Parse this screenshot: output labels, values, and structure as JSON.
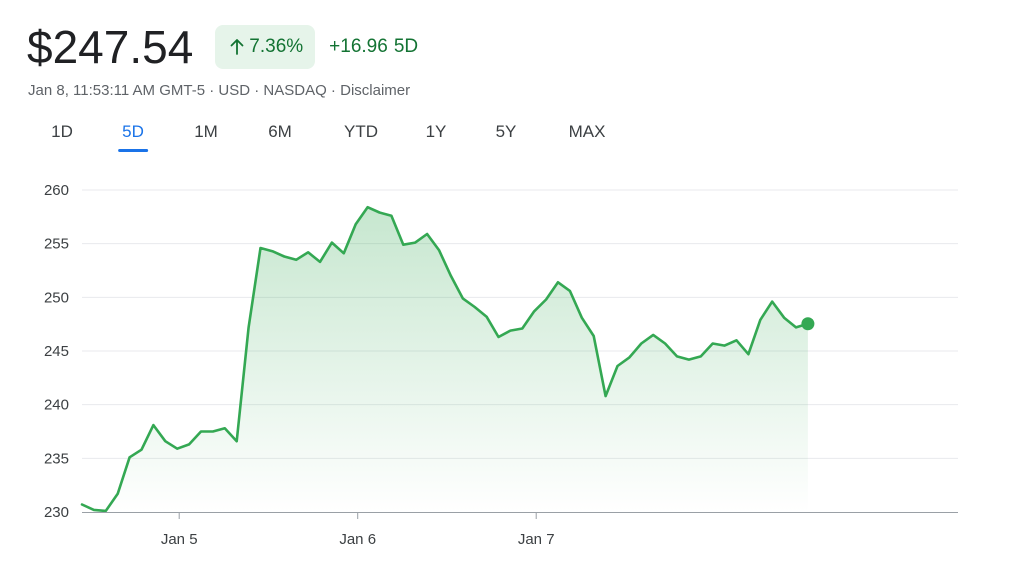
{
  "header": {
    "price": "$247.54",
    "percent_change": "7.36%",
    "change_arrow_icon": "arrow-up-icon",
    "absolute_change": "+16.96",
    "span_label": "5D",
    "timestamp": "Jan 8, 11:53:11 AM GMT-5",
    "currency": "USD",
    "exchange": "NASDAQ",
    "disclaimer": "Disclaimer",
    "separator": " · "
  },
  "tabs": [
    {
      "label": "1D",
      "active": false
    },
    {
      "label": "5D",
      "active": true
    },
    {
      "label": "1M",
      "active": false
    },
    {
      "label": "6M",
      "active": false
    },
    {
      "label": "YTD",
      "active": false
    },
    {
      "label": "1Y",
      "active": false
    },
    {
      "label": "5Y",
      "active": false
    },
    {
      "label": "MAX",
      "active": false
    }
  ],
  "colors": {
    "line": "#34a853",
    "fill": "#34a853",
    "positive_text": "#137333",
    "badge_bg": "#e6f4ea",
    "active_tab": "#1a73e8",
    "grid": "#e8eaed",
    "axis": "#9aa0a6"
  },
  "chart_data": {
    "type": "area",
    "x_labels": [
      "Jan 5",
      "Jan 6",
      "Jan 7"
    ],
    "x_label_positions": [
      8,
      23,
      38
    ],
    "x_range": [
      0,
      74
    ],
    "ylim": [
      230,
      260
    ],
    "yticks": [
      230,
      235,
      240,
      245,
      250,
      255,
      260
    ],
    "grid": true,
    "last_point_marker": true,
    "values": [
      230.7,
      230.2,
      230.1,
      231.7,
      235.1,
      235.8,
      238.1,
      236.6,
      235.9,
      236.3,
      237.5,
      237.5,
      237.8,
      236.6,
      247.2,
      254.6,
      254.3,
      253.8,
      253.5,
      254.2,
      253.3,
      255.1,
      254.1,
      256.8,
      258.4,
      257.9,
      257.6,
      254.9,
      255.1,
      255.9,
      254.4,
      252.0,
      249.9,
      249.1,
      248.2,
      246.3,
      246.9,
      247.1,
      248.7,
      249.8,
      251.4,
      250.6,
      248.1,
      246.4,
      240.8,
      243.6,
      244.4,
      245.7,
      246.5,
      245.7,
      244.5,
      244.2,
      244.5,
      245.7,
      245.5,
      246.0,
      244.7,
      247.9,
      249.6,
      248.1,
      247.2,
      247.54
    ]
  }
}
